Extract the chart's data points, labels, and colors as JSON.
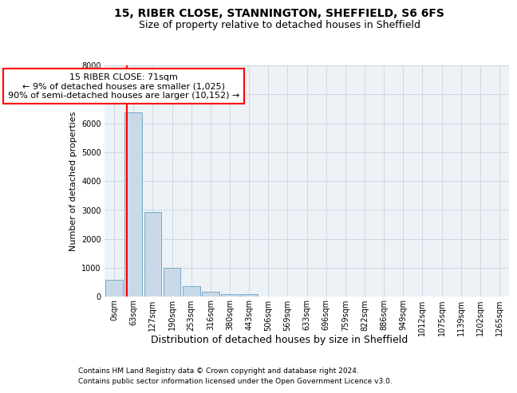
{
  "title1": "15, RIBER CLOSE, STANNINGTON, SHEFFIELD, S6 6FS",
  "title2": "Size of property relative to detached houses in Sheffield",
  "xlabel": "Distribution of detached houses by size in Sheffield",
  "ylabel": "Number of detached properties",
  "footnote1": "Contains HM Land Registry data © Crown copyright and database right 2024.",
  "footnote2": "Contains public sector information licensed under the Open Government Licence v3.0.",
  "bar_labels": [
    "0sqm",
    "63sqm",
    "127sqm",
    "190sqm",
    "253sqm",
    "316sqm",
    "380sqm",
    "443sqm",
    "506sqm",
    "569sqm",
    "633sqm",
    "696sqm",
    "759sqm",
    "822sqm",
    "886sqm",
    "949sqm",
    "1012sqm",
    "1075sqm",
    "1139sqm",
    "1202sqm",
    "1265sqm"
  ],
  "bar_values": [
    575,
    6380,
    2920,
    990,
    360,
    160,
    95,
    80,
    0,
    0,
    0,
    0,
    0,
    0,
    0,
    0,
    0,
    0,
    0,
    0,
    0
  ],
  "bar_color": "#c9d9e8",
  "bar_edgecolor": "#7aaac8",
  "ylim": [
    0,
    8000
  ],
  "yticks": [
    0,
    1000,
    2000,
    3000,
    4000,
    5000,
    6000,
    7000,
    8000
  ],
  "annotation_text1": "15 RIBER CLOSE: 71sqm",
  "annotation_text2": "← 9% of detached houses are smaller (1,025)",
  "annotation_text3": "90% of semi-detached houses are larger (10,152) →",
  "annotation_box_color": "white",
  "annotation_border_color": "red",
  "vline_color": "red",
  "bg_color": "#edf2f7",
  "grid_color": "#c8d4e0",
  "title1_fontsize": 10,
  "title2_fontsize": 9,
  "ylabel_fontsize": 8,
  "xlabel_fontsize": 9,
  "footnote_fontsize": 6.5,
  "tick_fontsize": 7,
  "annot_fontsize": 8
}
